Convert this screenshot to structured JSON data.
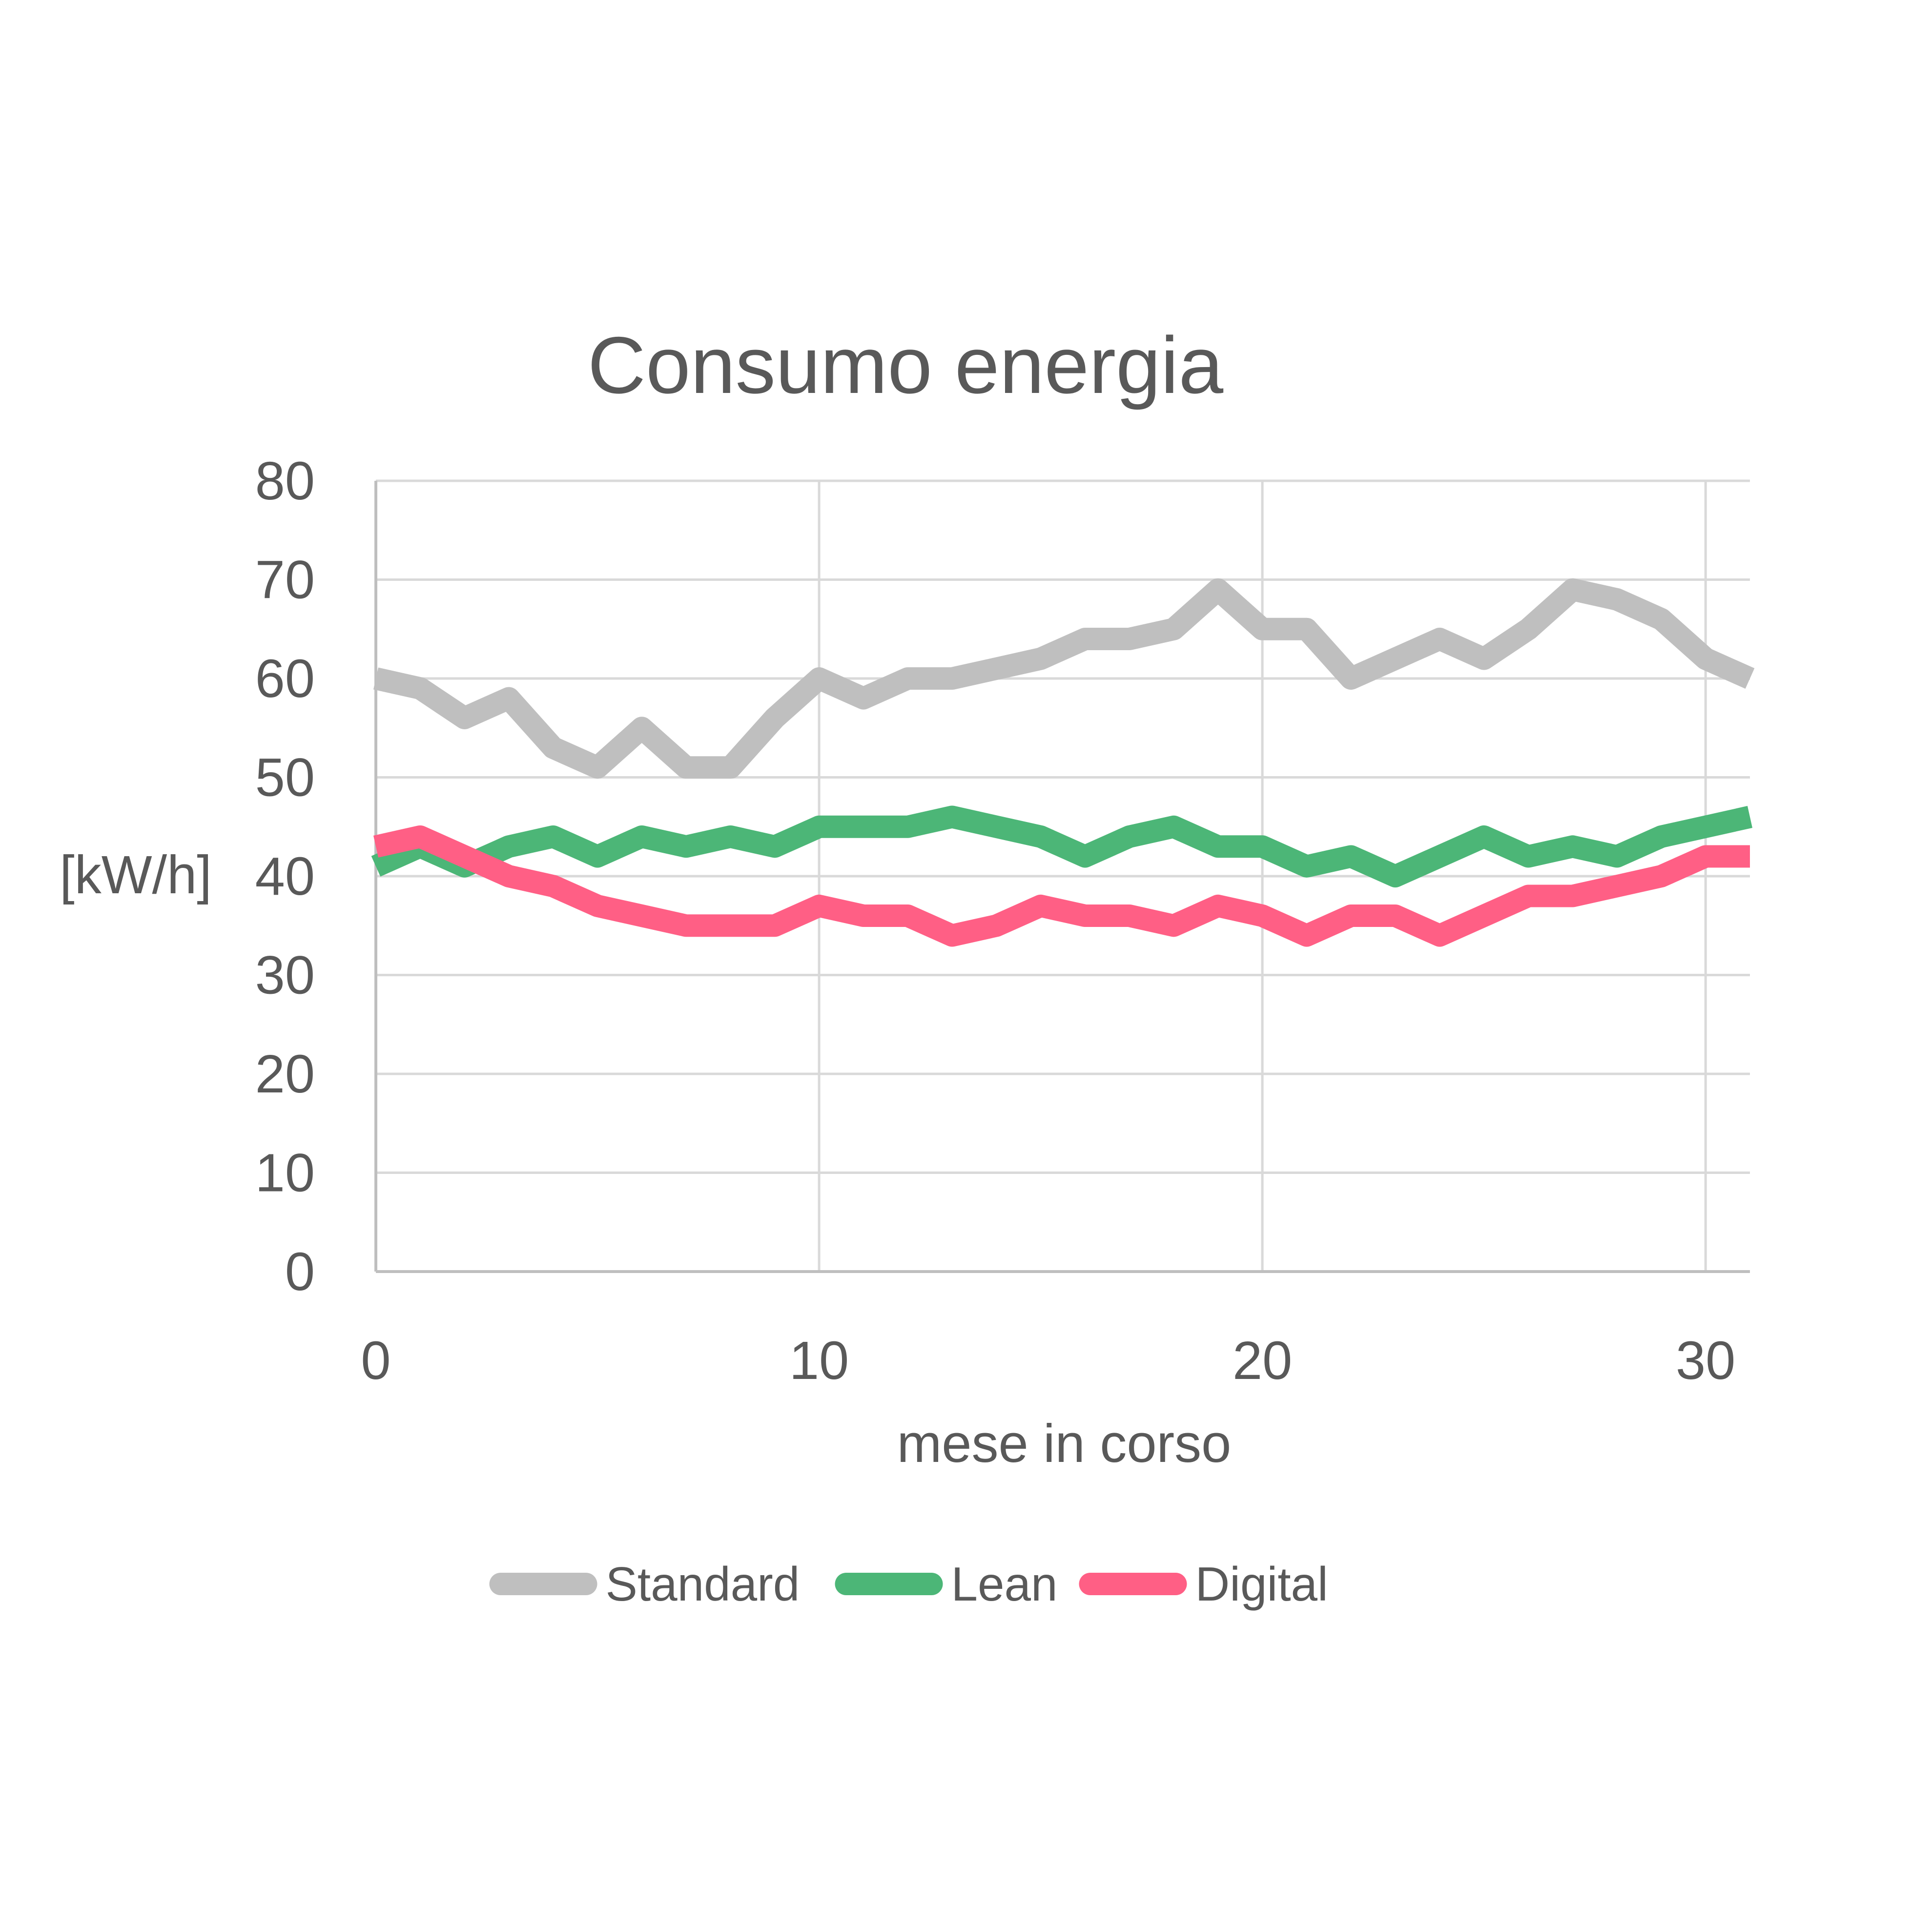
{
  "chart_data": {
    "type": "line",
    "title": "Consumo energia",
    "xlabel": "mese in corso",
    "ylabel": "[kW/h]",
    "xlim": [
      0,
      31
    ],
    "ylim": [
      0,
      80
    ],
    "xticks": [
      0,
      10,
      20,
      30
    ],
    "yticks": [
      0,
      10,
      20,
      30,
      40,
      50,
      60,
      70,
      80
    ],
    "x_tick_labels": [
      "0",
      "10",
      "20",
      "30"
    ],
    "y_tick_labels": [
      "0",
      "10",
      "20",
      "30",
      "40",
      "50",
      "60",
      "70",
      "80"
    ],
    "grid": true,
    "legend_position": "bottom",
    "x": [
      0,
      1,
      2,
      3,
      4,
      5,
      6,
      7,
      8,
      9,
      10,
      11,
      12,
      13,
      14,
      15,
      16,
      17,
      18,
      19,
      20,
      21,
      22,
      23,
      24,
      25,
      26,
      27,
      28,
      29,
      30,
      31
    ],
    "series": [
      {
        "name": "Standard",
        "color": "#BFBFBF",
        "values": [
          60,
          59,
          56,
          58,
          53,
          51,
          55,
          51,
          51,
          56,
          60,
          58,
          60,
          60,
          61,
          62,
          64,
          64,
          65,
          69,
          65,
          65,
          60,
          62,
          64,
          62,
          65,
          69,
          68,
          66,
          62,
          60
        ]
      },
      {
        "name": "Lean",
        "color": "#4CB677",
        "values": [
          41,
          43,
          41,
          43,
          44,
          42,
          44,
          43,
          44,
          43,
          45,
          45,
          45,
          46,
          45,
          44,
          42,
          44,
          45,
          43,
          43,
          41,
          42,
          40,
          42,
          44,
          42,
          43,
          42,
          44,
          45,
          46
        ]
      },
      {
        "name": "Digital",
        "color": "#FF5F85",
        "values": [
          43,
          44,
          42,
          40,
          39,
          37,
          36,
          35,
          35,
          35,
          37,
          36,
          36,
          34,
          35,
          37,
          36,
          36,
          35,
          37,
          36,
          34,
          36,
          36,
          34,
          36,
          38,
          38,
          39,
          40,
          42,
          42
        ]
      }
    ]
  }
}
